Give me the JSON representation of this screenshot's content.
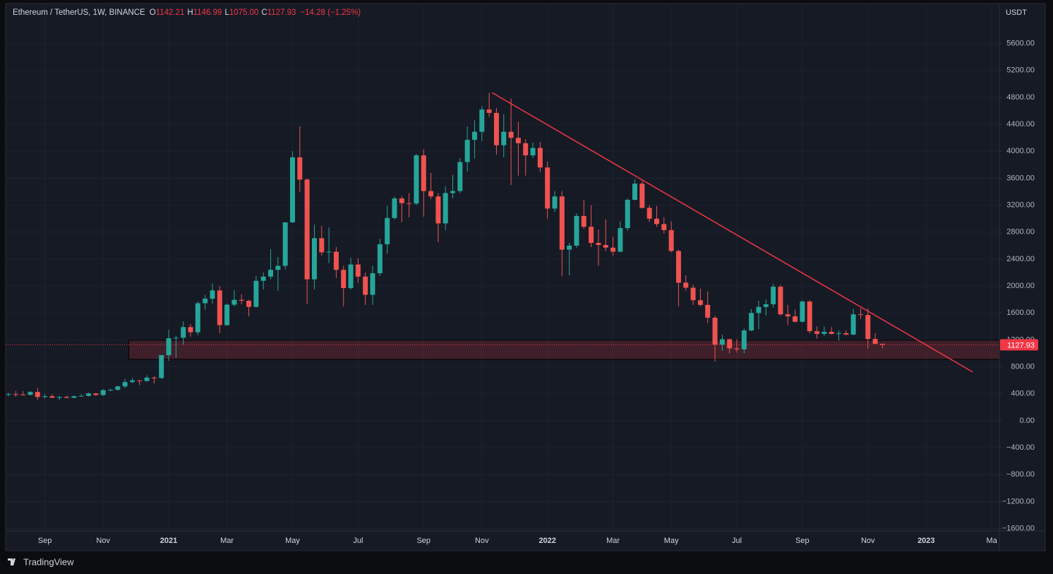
{
  "header": {
    "symbol": "Ethereum / TetherUS, 1W, BINANCE",
    "fields": [
      {
        "key": "O",
        "value": "1142.21"
      },
      {
        "key": "H",
        "value": "1146.99"
      },
      {
        "key": "L",
        "value": "1075.00"
      },
      {
        "key": "C",
        "value": "1127.93"
      }
    ],
    "change": "−14.28 (−1.25%)"
  },
  "chart_data": {
    "type": "candlestick",
    "currency": "USDT",
    "categories": [
      null,
      null,
      null,
      null,
      null,
      "Sep",
      null,
      null,
      null,
      null,
      null,
      null,
      null,
      "Nov",
      null,
      null,
      null,
      null,
      null,
      null,
      null,
      null,
      "2021",
      null,
      null,
      null,
      null,
      null,
      null,
      null,
      "Mar",
      null,
      null,
      null,
      null,
      null,
      null,
      null,
      null,
      "May",
      null,
      null,
      null,
      null,
      null,
      null,
      null,
      null,
      "Jul",
      null,
      null,
      null,
      null,
      null,
      null,
      null,
      null,
      "Sep",
      null,
      null,
      null,
      null,
      null,
      null,
      null,
      "Nov",
      null,
      null,
      null,
      null,
      null,
      null,
      null,
      null,
      "2022",
      null,
      null,
      null,
      null,
      null,
      null,
      null,
      null,
      "Mar",
      null,
      null,
      null,
      null,
      null,
      null,
      null,
      "May",
      null,
      null,
      null,
      null,
      null,
      null,
      null,
      null,
      "Jul",
      null,
      null,
      null,
      null,
      null,
      null,
      null,
      null,
      "Sep",
      null,
      null,
      null,
      null,
      null,
      null,
      null,
      null,
      "Nov",
      null,
      null,
      null,
      null,
      null,
      null,
      null,
      "2023",
      null,
      null,
      null,
      null,
      null,
      null,
      null,
      null,
      "Ma"
    ],
    "open": [
      389,
      395,
      390,
      385,
      428,
      353,
      365,
      343,
      355,
      341,
      365,
      369,
      406,
      382,
      455,
      460,
      510,
      575,
      600,
      590,
      640,
      635,
      975,
      1225,
      1233,
      1391,
      1314,
      1745,
      1812,
      1935,
      1420,
      1723,
      1795,
      1782,
      1691,
      2078,
      2140,
      2241,
      2300,
      2945,
      3910,
      3580,
      2100,
      2710,
      2500,
      2510,
      2240,
      1970,
      2320,
      2140,
      1870,
      2190,
      2620,
      3010,
      3300,
      3230,
      3225,
      3940,
      3410,
      3330,
      2930,
      3380,
      3410,
      3840,
      4170,
      4290,
      4620,
      4570,
      4090,
      4290,
      4200,
      4120,
      3940,
      4050,
      3760,
      3150,
      3330,
      2540,
      2600,
      3040,
      2880,
      2640,
      2610,
      2570,
      2510,
      2860,
      3280,
      3520,
      3160,
      3000,
      2920,
      2830,
      2520,
      2050,
      1975,
      1790,
      1720,
      1530,
      1130,
      1210,
      1075,
      1060,
      1340,
      1600,
      1690,
      1730,
      1990,
      1580,
      1550,
      1470,
      1770,
      1330,
      1290,
      1320,
      1290,
      1300,
      1280,
      1580,
      1570,
      1215,
      1142.21,
      null,
      null,
      null,
      null,
      null,
      null,
      null,
      null,
      null,
      null,
      null,
      null,
      null,
      null,
      null
    ],
    "high": [
      415,
      445,
      440,
      440,
      488,
      395,
      395,
      364,
      367,
      375,
      395,
      420,
      415,
      470,
      475,
      520,
      622,
      635,
      605,
      675,
      660,
      980,
      1350,
      1260,
      1475,
      1435,
      1770,
      1870,
      2040,
      2000,
      1740,
      1940,
      1880,
      1795,
      2150,
      2200,
      2545,
      2430,
      2950,
      4000,
      4370,
      3600,
      2910,
      2890,
      2870,
      2580,
      2300,
      2420,
      2410,
      2200,
      2300,
      2700,
      3190,
      3330,
      3340,
      3380,
      3960,
      4030,
      3680,
      3380,
      3480,
      3650,
      3900,
      4370,
      4460,
      4670,
      4870,
      4640,
      4550,
      4780,
      4440,
      4180,
      4130,
      4140,
      3850,
      3410,
      3410,
      2640,
      3080,
      3280,
      3200,
      2840,
      2990,
      2730,
      2960,
      3300,
      3580,
      3560,
      3200,
      3190,
      3020,
      2960,
      2540,
      2160,
      2020,
      1960,
      1920,
      1560,
      1280,
      1220,
      1210,
      1370,
      1660,
      1780,
      1800,
      2030,
      2020,
      1720,
      1650,
      1790,
      1790,
      1400,
      1400,
      1390,
      1340,
      1340,
      1660,
      1670,
      1670,
      1300,
      1146.99,
      null,
      null,
      null,
      null,
      null,
      null,
      null,
      null,
      null,
      null,
      null,
      null,
      null,
      null,
      null
    ],
    "low": [
      365,
      355,
      375,
      375,
      310,
      330,
      335,
      308,
      335,
      335,
      360,
      360,
      370,
      370,
      440,
      445,
      482,
      560,
      530,
      580,
      550,
      620,
      890,
      935,
      1130,
      1250,
      1270,
      1650,
      1740,
      1300,
      1410,
      1700,
      1730,
      1550,
      1680,
      1950,
      2100,
      1930,
      2250,
      2940,
      3400,
      1730,
      1950,
      2450,
      2340,
      2120,
      1700,
      1950,
      2050,
      1720,
      1720,
      2150,
      2480,
      2990,
      2950,
      3020,
      3200,
      3030,
      3290,
      2650,
      2830,
      3300,
      3380,
      3700,
      3890,
      4150,
      4510,
      3950,
      3910,
      3500,
      3640,
      3640,
      3900,
      3690,
      3000,
      3100,
      2150,
      2160,
      2570,
      2850,
      2580,
      2300,
      2520,
      2450,
      2500,
      2820,
      3270,
      3150,
      2950,
      2880,
      2780,
      2500,
      1700,
      1930,
      1720,
      1700,
      1450,
      880,
      1040,
      1000,
      1010,
      1000,
      1330,
      1360,
      1560,
      1680,
      1560,
      1420,
      1460,
      1460,
      1300,
      1220,
      1260,
      1280,
      1190,
      1270,
      1270,
      1510,
      1070,
      1140,
      1075,
      null,
      null,
      null,
      null,
      null,
      null,
      null,
      null,
      null,
      null,
      null,
      null,
      null,
      null,
      null
    ],
    "close": [
      395,
      390,
      385,
      428,
      353,
      365,
      343,
      355,
      341,
      365,
      369,
      406,
      382,
      455,
      460,
      510,
      575,
      600,
      590,
      640,
      635,
      975,
      1225,
      1233,
      1391,
      1314,
      1745,
      1812,
      1935,
      1420,
      1723,
      1795,
      1782,
      1691,
      2078,
      2140,
      2241,
      2300,
      2945,
      3910,
      3580,
      2100,
      2710,
      2500,
      2510,
      2240,
      1970,
      2320,
      2140,
      1870,
      2190,
      2620,
      3010,
      3300,
      3230,
      3225,
      3940,
      3410,
      3330,
      2930,
      3380,
      3410,
      3840,
      4170,
      4290,
      4620,
      4570,
      4090,
      4290,
      4200,
      4120,
      3940,
      4050,
      3760,
      3150,
      3330,
      2540,
      2600,
      3040,
      2880,
      2640,
      2610,
      2570,
      2510,
      2860,
      3280,
      3520,
      3160,
      3000,
      2920,
      2830,
      2520,
      2050,
      1975,
      1790,
      1720,
      1530,
      1130,
      1210,
      1075,
      1060,
      1340,
      1600,
      1690,
      1730,
      1990,
      1580,
      1550,
      1470,
      1770,
      1330,
      1290,
      1320,
      1290,
      1300,
      1280,
      1580,
      1570,
      1215,
      1142.21,
      1127.93,
      null,
      null,
      null,
      null,
      null,
      null,
      null,
      null,
      null,
      null,
      null,
      null,
      null,
      null,
      null
    ],
    "up_color": "#26a69a",
    "down_color": "#ef5350",
    "ylim": [
      -1614,
      6162
    ],
    "yticks": [
      {
        "value": -1600,
        "label": "−1600.00"
      },
      {
        "value": -1200,
        "label": "−1200.00"
      },
      {
        "value": -800,
        "label": "−800.00"
      },
      {
        "value": -400,
        "label": "−400.00"
      },
      {
        "value": 0,
        "label": "0.00"
      },
      {
        "value": 400,
        "label": "400.00"
      },
      {
        "value": 800,
        "label": "800.00"
      },
      {
        "value": 1200,
        "label": "1200.00"
      },
      {
        "value": 1600,
        "label": "1600.00"
      },
      {
        "value": 2000,
        "label": "2000.00"
      },
      {
        "value": 2400,
        "label": "2400.00"
      },
      {
        "value": 2800,
        "label": "2800.00"
      },
      {
        "value": 3200,
        "label": "3200.00"
      },
      {
        "value": 3600,
        "label": "3600.00"
      },
      {
        "value": 4000,
        "label": "4000.00"
      },
      {
        "value": 4400,
        "label": "4400.00"
      },
      {
        "value": 4800,
        "label": "4800.00"
      },
      {
        "value": 5200,
        "label": "5200.00"
      },
      {
        "value": 5600,
        "label": "5600.00"
      }
    ],
    "grid": true,
    "trendline": {
      "color": "#f23645",
      "points": [
        [
          66.4,
          4870
        ],
        [
          132.4,
          723
        ]
      ]
    },
    "zone": {
      "start": 17,
      "low": 912,
      "high": 1195,
      "color": "#f23645"
    },
    "last_price_color": "#f23645"
  },
  "footer": {
    "brand": "TradingView"
  }
}
